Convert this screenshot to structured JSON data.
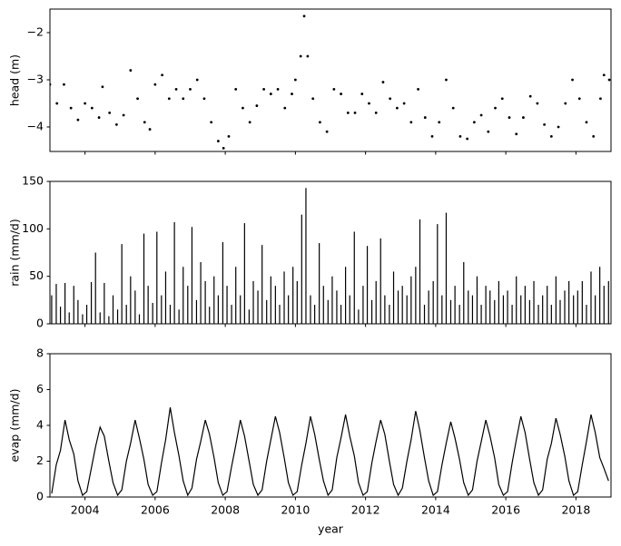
{
  "chart_data": [
    {
      "type": "scatter",
      "ylabel": "head (m)",
      "color": "#000000",
      "x": [
        2003.0,
        2003.2,
        2003.4,
        2003.6,
        2003.8,
        2004.0,
        2004.2,
        2004.4,
        2004.5,
        2004.7,
        2004.9,
        2005.1,
        2005.3,
        2005.5,
        2005.7,
        2005.85,
        2006.0,
        2006.2,
        2006.4,
        2006.6,
        2006.8,
        2007.0,
        2007.2,
        2007.4,
        2007.6,
        2007.8,
        2007.95,
        2008.1,
        2008.3,
        2008.5,
        2008.7,
        2008.9,
        2009.1,
        2009.3,
        2009.5,
        2009.7,
        2009.9,
        2010.0,
        2010.15,
        2010.25,
        2010.35,
        2010.5,
        2010.7,
        2010.9,
        2011.1,
        2011.3,
        2011.5,
        2011.7,
        2011.9,
        2012.1,
        2012.3,
        2012.5,
        2012.7,
        2012.9,
        2013.1,
        2013.3,
        2013.5,
        2013.7,
        2013.9,
        2014.1,
        2014.3,
        2014.5,
        2014.7,
        2014.9,
        2015.1,
        2015.3,
        2015.5,
        2015.7,
        2015.9,
        2016.1,
        2016.3,
        2016.5,
        2016.7,
        2016.9,
        2017.1,
        2017.3,
        2017.5,
        2017.7,
        2017.9,
        2018.1,
        2018.3,
        2018.5,
        2018.7,
        2018.8,
        2018.95
      ],
      "values": [
        -3.1,
        -3.5,
        -3.1,
        -3.6,
        -3.85,
        -3.5,
        -3.6,
        -3.8,
        -3.15,
        -3.7,
        -3.95,
        -3.75,
        -2.8,
        -3.4,
        -3.9,
        -4.05,
        -3.1,
        -2.9,
        -3.4,
        -3.2,
        -3.4,
        -3.2,
        -3.0,
        -3.4,
        -3.9,
        -4.3,
        -4.45,
        -4.2,
        -3.2,
        -3.6,
        -3.9,
        -3.55,
        -3.2,
        -3.3,
        -3.2,
        -3.6,
        -3.3,
        -3.0,
        -2.5,
        -1.65,
        -2.5,
        -3.4,
        -3.9,
        -4.1,
        -3.2,
        -3.3,
        -3.7,
        -3.7,
        -3.3,
        -3.5,
        -3.7,
        -3.05,
        -3.4,
        -3.6,
        -3.5,
        -3.9,
        -3.2,
        -3.8,
        -4.2,
        -3.9,
        -3.0,
        -3.6,
        -4.2,
        -4.25,
        -3.9,
        -3.75,
        -4.1,
        -3.6,
        -3.4,
        -3.8,
        -4.15,
        -3.8,
        -3.35,
        -3.5,
        -3.95,
        -4.2,
        -4.0,
        -3.5,
        -3.0,
        -3.4,
        -3.9,
        -4.2,
        -3.4,
        -2.9,
        -3.0
      ],
      "ylim": [
        -4.52,
        -1.5
      ],
      "yticks": [
        {
          "value": -4,
          "label": "−4"
        },
        {
          "value": -3,
          "label": "−3"
        },
        {
          "value": -2,
          "label": "−2"
        }
      ]
    },
    {
      "type": "bar",
      "ylabel": "rain (mm/d)",
      "color": "#000000",
      "x": [
        2003.05,
        2003.18,
        2003.3,
        2003.43,
        2003.55,
        2003.68,
        2003.8,
        2003.93,
        2004.05,
        2004.18,
        2004.3,
        2004.43,
        2004.55,
        2004.68,
        2004.8,
        2004.93,
        2005.05,
        2005.18,
        2005.3,
        2005.43,
        2005.55,
        2005.68,
        2005.8,
        2005.93,
        2006.05,
        2006.18,
        2006.3,
        2006.43,
        2006.55,
        2006.68,
        2006.8,
        2006.93,
        2007.05,
        2007.18,
        2007.3,
        2007.43,
        2007.55,
        2007.68,
        2007.8,
        2007.93,
        2008.05,
        2008.18,
        2008.3,
        2008.43,
        2008.55,
        2008.68,
        2008.8,
        2008.93,
        2009.05,
        2009.18,
        2009.3,
        2009.43,
        2009.55,
        2009.68,
        2009.8,
        2009.93,
        2010.05,
        2010.18,
        2010.3,
        2010.43,
        2010.55,
        2010.68,
        2010.8,
        2010.93,
        2011.05,
        2011.18,
        2011.3,
        2011.43,
        2011.55,
        2011.68,
        2011.8,
        2011.93,
        2012.05,
        2012.18,
        2012.3,
        2012.43,
        2012.55,
        2012.68,
        2012.8,
        2012.93,
        2013.05,
        2013.18,
        2013.3,
        2013.43,
        2013.55,
        2013.68,
        2013.8,
        2013.93,
        2014.05,
        2014.18,
        2014.3,
        2014.43,
        2014.55,
        2014.68,
        2014.8,
        2014.93,
        2015.05,
        2015.18,
        2015.3,
        2015.43,
        2015.55,
        2015.68,
        2015.8,
        2015.93,
        2016.05,
        2016.18,
        2016.3,
        2016.43,
        2016.55,
        2016.68,
        2016.8,
        2016.93,
        2017.05,
        2017.18,
        2017.3,
        2017.43,
        2017.55,
        2017.68,
        2017.8,
        2017.93,
        2018.05,
        2018.18,
        2018.3,
        2018.43,
        2018.55,
        2018.68,
        2018.8,
        2018.93
      ],
      "values": [
        30,
        42,
        18,
        43,
        12,
        40,
        25,
        10,
        20,
        44,
        75,
        12,
        43,
        8,
        30,
        15,
        84,
        20,
        50,
        35,
        10,
        95,
        40,
        22,
        97,
        30,
        55,
        20,
        107,
        15,
        60,
        40,
        102,
        25,
        65,
        45,
        18,
        50,
        30,
        86,
        40,
        20,
        60,
        30,
        106,
        15,
        45,
        35,
        83,
        25,
        50,
        40,
        20,
        55,
        30,
        60,
        45,
        115,
        143,
        30,
        20,
        85,
        40,
        25,
        50,
        35,
        20,
        60,
        30,
        97,
        15,
        40,
        82,
        25,
        45,
        90,
        30,
        20,
        55,
        35,
        40,
        30,
        50,
        60,
        110,
        20,
        35,
        45,
        105,
        30,
        117,
        25,
        40,
        20,
        65,
        35,
        30,
        50,
        20,
        40,
        35,
        25,
        45,
        30,
        35,
        20,
        50,
        30,
        40,
        25,
        45,
        20,
        30,
        40,
        20,
        50,
        25,
        35,
        45,
        30,
        35,
        45,
        20,
        55,
        30,
        60,
        40,
        45
      ],
      "ylim": [
        0,
        150
      ],
      "yticks": [
        0,
        50,
        100,
        150
      ]
    },
    {
      "type": "line",
      "ylabel": "evap (mm/d)",
      "xlabel": "year",
      "color": "#000000",
      "x": [
        2003.05,
        2003.18,
        2003.3,
        2003.43,
        2003.55,
        2003.68,
        2003.8,
        2003.93,
        2004.05,
        2004.18,
        2004.3,
        2004.43,
        2004.55,
        2004.68,
        2004.8,
        2004.93,
        2005.05,
        2005.18,
        2005.3,
        2005.43,
        2005.55,
        2005.68,
        2005.8,
        2005.93,
        2006.05,
        2006.18,
        2006.3,
        2006.43,
        2006.55,
        2006.68,
        2006.8,
        2006.93,
        2007.05,
        2007.18,
        2007.3,
        2007.43,
        2007.55,
        2007.68,
        2007.8,
        2007.93,
        2008.05,
        2008.18,
        2008.3,
        2008.43,
        2008.55,
        2008.68,
        2008.8,
        2008.93,
        2009.05,
        2009.18,
        2009.3,
        2009.43,
        2009.55,
        2009.68,
        2009.8,
        2009.93,
        2010.05,
        2010.18,
        2010.3,
        2010.43,
        2010.55,
        2010.68,
        2010.8,
        2010.93,
        2011.05,
        2011.18,
        2011.3,
        2011.43,
        2011.55,
        2011.68,
        2011.8,
        2011.93,
        2012.05,
        2012.18,
        2012.3,
        2012.43,
        2012.55,
        2012.68,
        2012.8,
        2012.93,
        2013.05,
        2013.18,
        2013.3,
        2013.43,
        2013.55,
        2013.68,
        2013.8,
        2013.93,
        2014.05,
        2014.18,
        2014.3,
        2014.43,
        2014.55,
        2014.68,
        2014.8,
        2014.93,
        2015.05,
        2015.18,
        2015.3,
        2015.43,
        2015.55,
        2015.68,
        2015.8,
        2015.93,
        2016.05,
        2016.18,
        2016.3,
        2016.43,
        2016.55,
        2016.68,
        2016.8,
        2016.93,
        2017.05,
        2017.18,
        2017.3,
        2017.43,
        2017.55,
        2017.68,
        2017.8,
        2017.93,
        2018.05,
        2018.18,
        2018.3,
        2018.43,
        2018.55,
        2018.68,
        2018.8,
        2018.93
      ],
      "values": [
        0.2,
        1.8,
        2.6,
        4.3,
        3.2,
        2.4,
        0.9,
        0.1,
        0.3,
        1.6,
        2.8,
        3.9,
        3.4,
        2.0,
        0.8,
        0.1,
        0.4,
        2.0,
        3.0,
        4.3,
        3.3,
        2.1,
        0.7,
        0.1,
        0.3,
        1.9,
        3.2,
        5.0,
        3.6,
        2.3,
        0.9,
        0.1,
        0.5,
        2.1,
        3.1,
        4.3,
        3.5,
        2.2,
        0.8,
        0.1,
        0.3,
        1.7,
        2.9,
        4.3,
        3.4,
        2.0,
        0.7,
        0.1,
        0.4,
        2.0,
        3.2,
        4.5,
        3.6,
        2.2,
        0.8,
        0.1,
        0.3,
        1.8,
        3.0,
        4.5,
        3.5,
        2.1,
        0.9,
        0.1,
        0.4,
        2.2,
        3.3,
        4.6,
        3.4,
        2.3,
        0.8,
        0.1,
        0.3,
        1.9,
        3.1,
        4.3,
        3.5,
        2.0,
        0.7,
        0.1,
        0.5,
        2.0,
        3.2,
        4.8,
        3.7,
        2.2,
        0.9,
        0.1,
        0.3,
        1.8,
        3.0,
        4.2,
        3.3,
        2.1,
        0.8,
        0.1,
        0.4,
        2.0,
        3.1,
        4.3,
        3.4,
        2.2,
        0.7,
        0.1,
        0.3,
        1.9,
        3.2,
        4.5,
        3.6,
        2.1,
        0.8,
        0.1,
        0.4,
        2.1,
        3.0,
        4.4,
        3.5,
        2.3,
        0.9,
        0.1,
        0.3,
        1.8,
        3.1,
        4.6,
        3.6,
        2.2,
        1.6,
        0.9
      ],
      "ylim": [
        0,
        8
      ],
      "yticks": [
        0,
        2,
        4,
        6,
        8
      ],
      "xlim": [
        2003,
        2019
      ],
      "xticks": [
        2004,
        2006,
        2008,
        2010,
        2012,
        2014,
        2016,
        2018
      ]
    }
  ]
}
